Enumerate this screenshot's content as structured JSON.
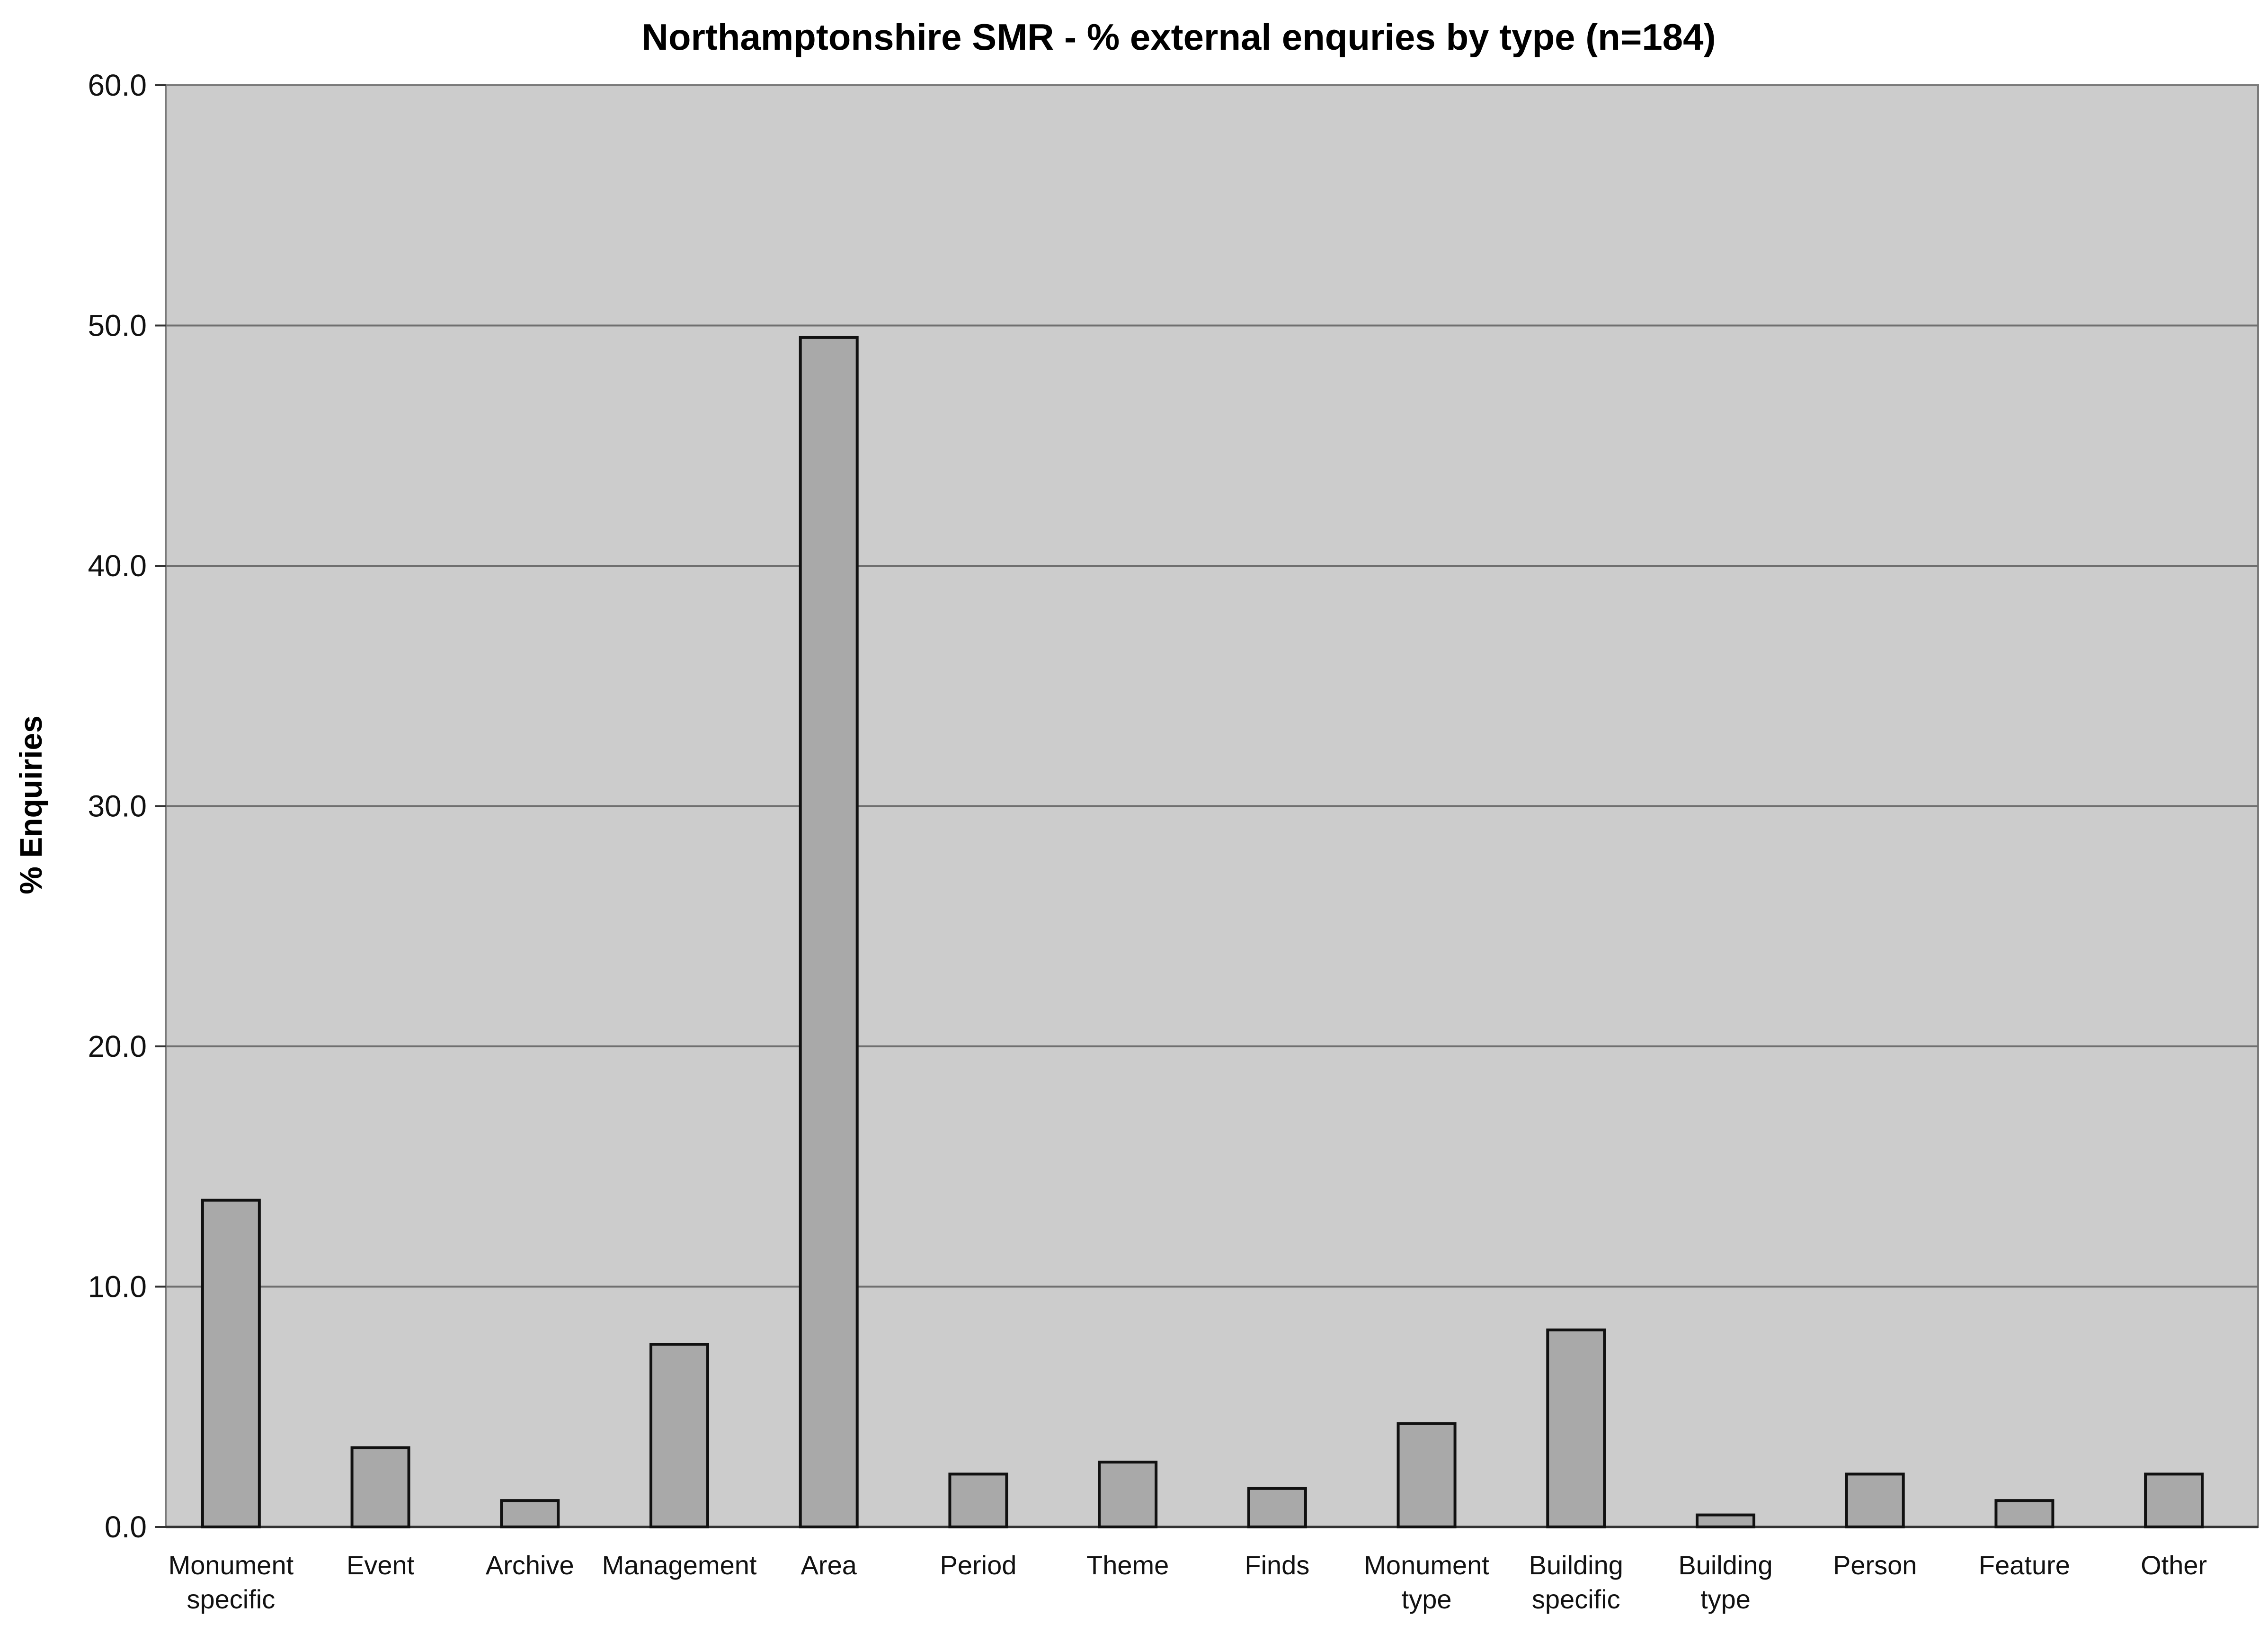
{
  "chart_data": {
    "type": "bar",
    "title": "Northamptonshire SMR - % external enquries by type (n=184)",
    "xlabel": "",
    "ylabel": "% Enquiries",
    "ylim": [
      0,
      60
    ],
    "yticks": [
      "0.0",
      "10.0",
      "20.0",
      "30.0",
      "40.0",
      "50.0",
      "60.0"
    ],
    "grid": true,
    "categories": [
      "Monument specific",
      "Event",
      "Archive",
      "Management",
      "Area",
      "Period",
      "Theme",
      "Finds",
      "Monument type",
      "Building specific",
      "Building type",
      "Person",
      "Feature",
      "Other"
    ],
    "values": [
      13.6,
      3.3,
      1.1,
      7.6,
      49.5,
      2.2,
      2.7,
      1.6,
      4.3,
      8.2,
      0.5,
      2.2,
      1.1,
      2.2
    ],
    "colors": {
      "bar_fill": "#a9a9a9",
      "bar_edge": "#111111",
      "plot_background": "#cccccc",
      "gridline": "#6f6f6f"
    }
  }
}
